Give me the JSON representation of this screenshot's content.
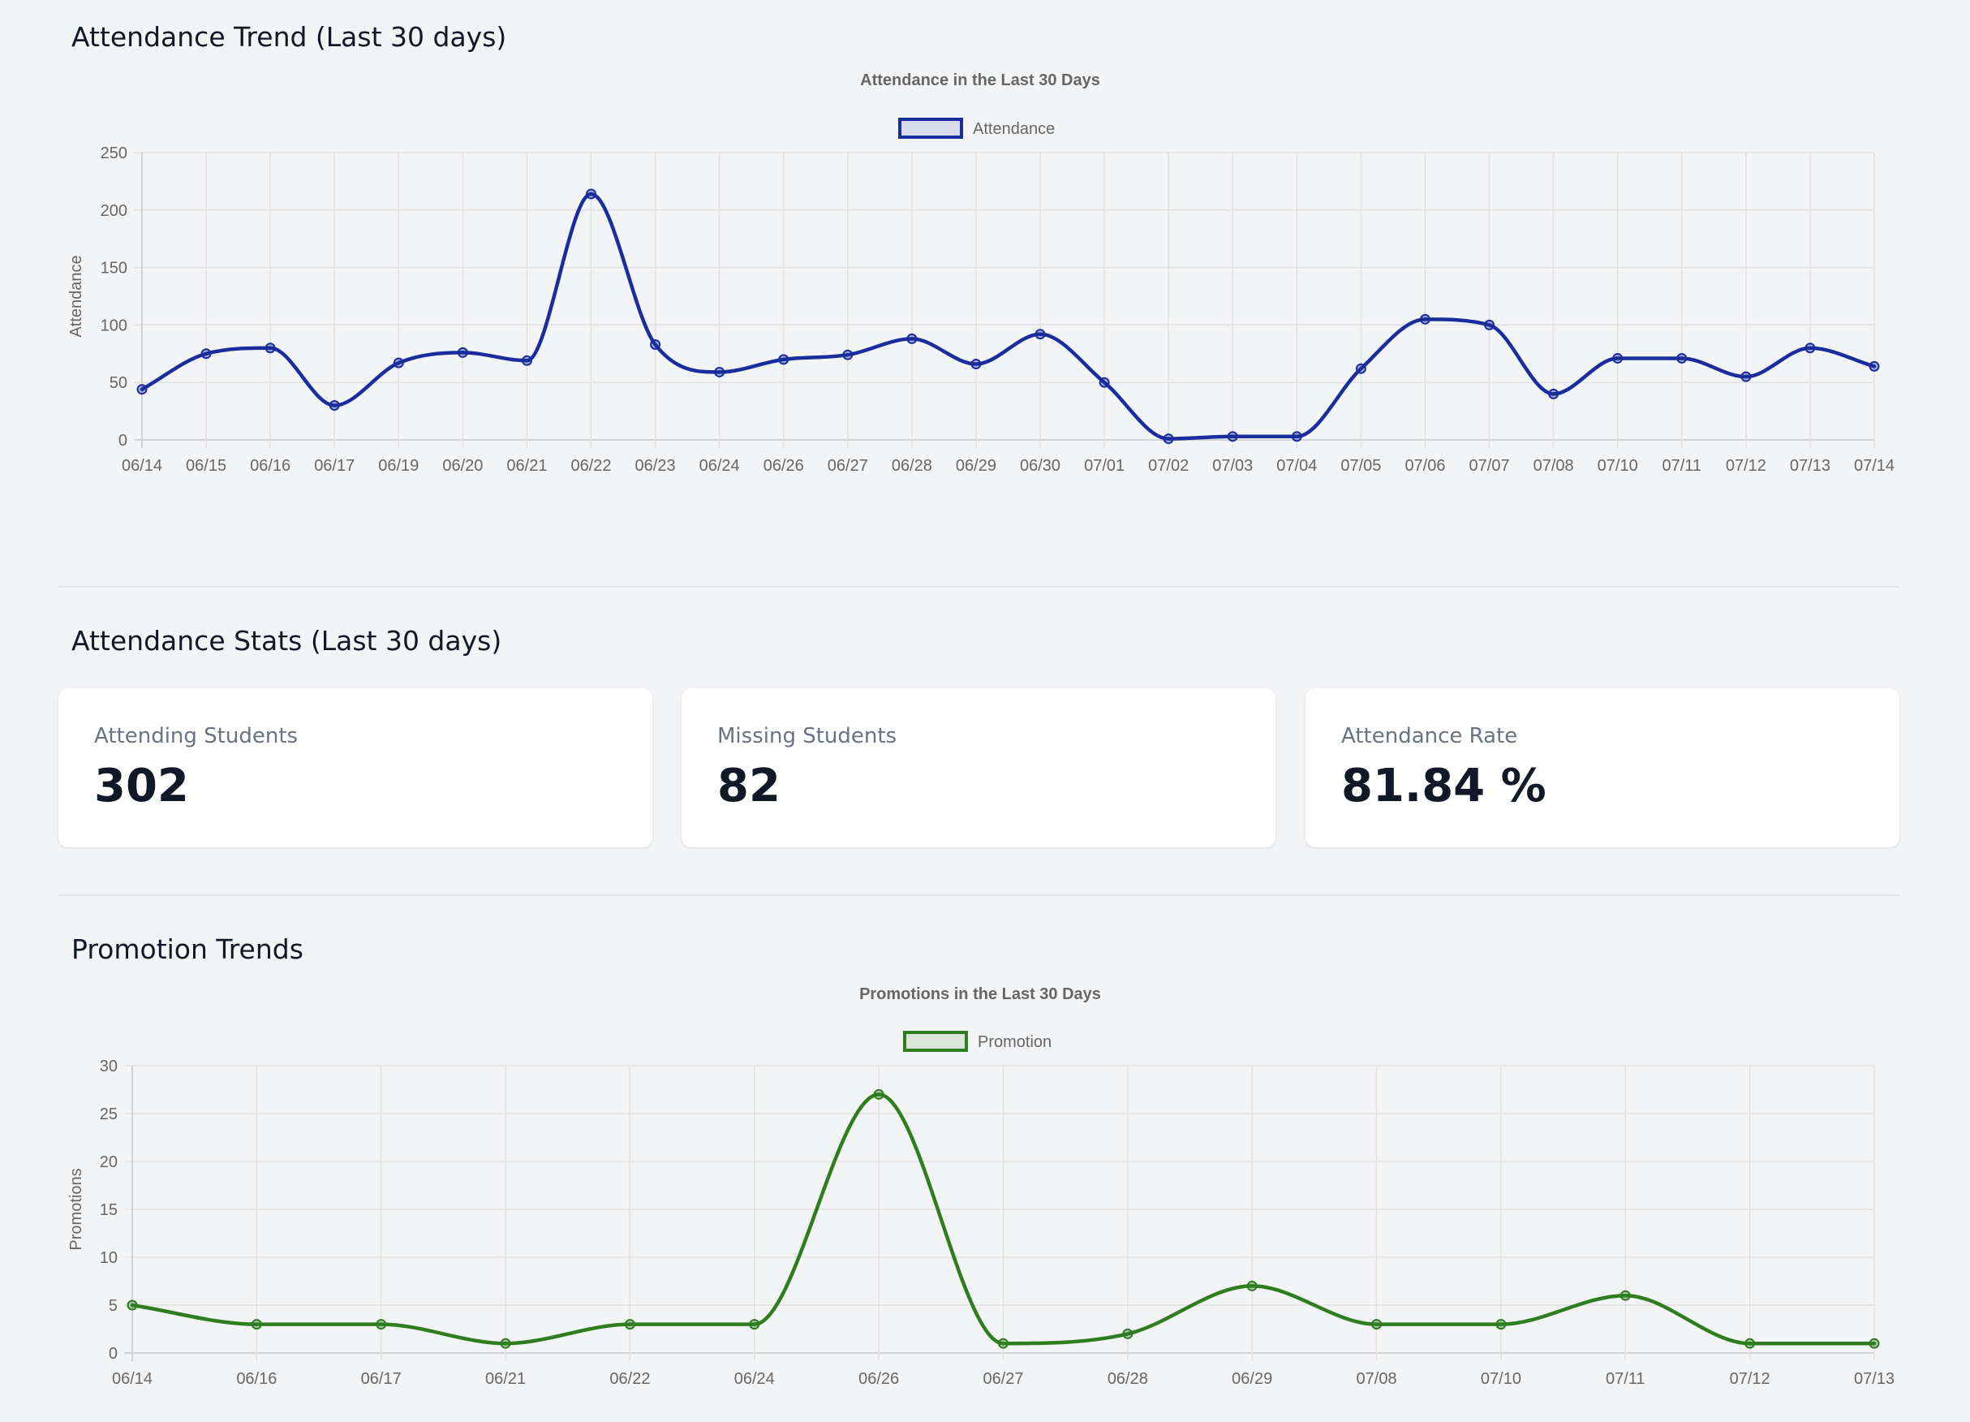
{
  "attendance_section": {
    "title": "Attendance Trend (Last 30 days)"
  },
  "stats_section": {
    "title": "Attendance Stats (Last 30 days)",
    "cards": [
      {
        "label": "Attending Students",
        "value": "302"
      },
      {
        "label": "Missing Students",
        "value": "82"
      },
      {
        "label": "Attendance Rate",
        "value": "81.84 %"
      }
    ]
  },
  "promotion_section": {
    "title": "Promotion Trends"
  },
  "chart_data": [
    {
      "type": "line",
      "title": "Attendance in the Last 30 Days",
      "xlabel": "",
      "ylabel": "Attendance",
      "ylim": [
        0,
        250
      ],
      "yticks": [
        0,
        50,
        100,
        150,
        200,
        250
      ],
      "grid": true,
      "legend": "top-center",
      "color": "#1a2d9c",
      "categories": [
        "06/14",
        "06/15",
        "06/16",
        "06/17",
        "06/19",
        "06/20",
        "06/21",
        "06/22",
        "06/23",
        "06/24",
        "06/26",
        "06/27",
        "06/28",
        "06/29",
        "06/30",
        "07/01",
        "07/02",
        "07/03",
        "07/04",
        "07/05",
        "07/06",
        "07/07",
        "07/08",
        "07/10",
        "07/11",
        "07/12",
        "07/13",
        "07/14"
      ],
      "series": [
        {
          "name": "Attendance",
          "values": [
            44,
            75,
            80,
            30,
            67,
            76,
            69,
            214,
            83,
            59,
            70,
            74,
            88,
            66,
            92,
            50,
            1,
            3,
            3,
            62,
            105,
            100,
            40,
            71,
            71,
            55,
            80,
            64
          ]
        }
      ]
    },
    {
      "type": "line",
      "title": "Promotions in the Last 30 Days",
      "xlabel": "",
      "ylabel": "Promotions",
      "ylim": [
        0,
        30
      ],
      "yticks": [
        0,
        5,
        10,
        15,
        20,
        25,
        30
      ],
      "grid": true,
      "legend": "top-center",
      "color": "#2e7d1f",
      "categories": [
        "06/14",
        "06/16",
        "06/17",
        "06/21",
        "06/22",
        "06/24",
        "06/26",
        "06/27",
        "06/28",
        "06/29",
        "07/08",
        "07/10",
        "07/11",
        "07/12",
        "07/13"
      ],
      "series": [
        {
          "name": "Promotion",
          "values": [
            5,
            3,
            3,
            1,
            3,
            3,
            27,
            1,
            2,
            7,
            3,
            3,
            6,
            1,
            1
          ]
        }
      ]
    }
  ]
}
